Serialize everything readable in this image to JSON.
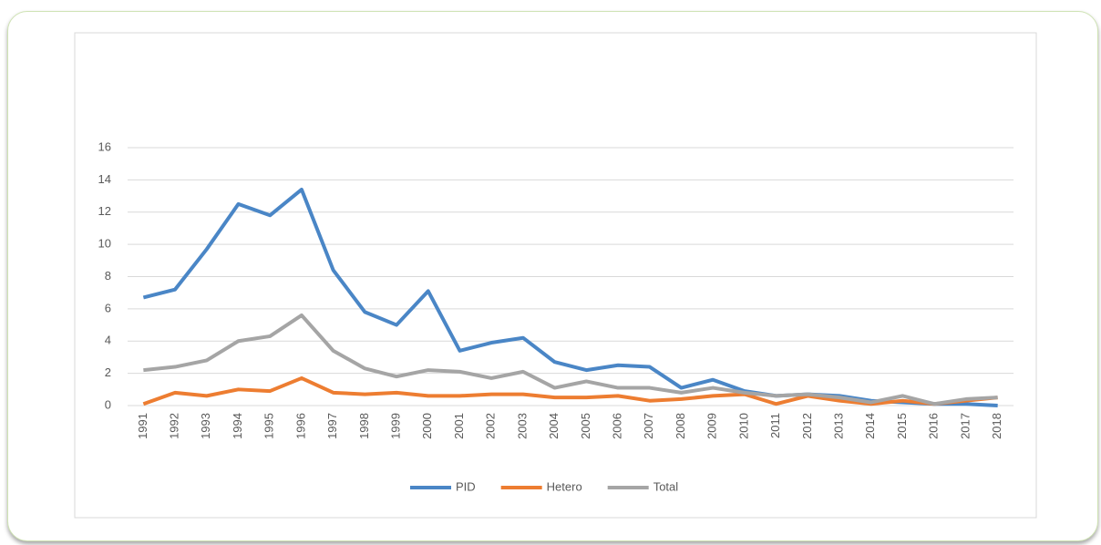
{
  "chart_data": {
    "type": "line",
    "categories": [
      "1991",
      "1992",
      "1993",
      "1994",
      "1995",
      "1996",
      "1997",
      "1998",
      "1999",
      "2000",
      "2001",
      "2002",
      "2003",
      "2004",
      "2005",
      "2006",
      "2007",
      "2008",
      "2009",
      "2010",
      "2011",
      "2012",
      "2013",
      "2014",
      "2015",
      "2016",
      "2017",
      "2018"
    ],
    "series": [
      {
        "name": "PID",
        "color": "#4a86c6",
        "values": [
          6.7,
          7.2,
          9.7,
          12.5,
          11.8,
          13.4,
          8.4,
          5.8,
          5.0,
          7.1,
          3.4,
          3.9,
          4.2,
          2.7,
          2.2,
          2.5,
          2.4,
          1.1,
          1.6,
          0.9,
          0.6,
          0.7,
          0.6,
          0.3,
          0.2,
          0.1,
          0.1,
          0.0
        ]
      },
      {
        "name": "Hetero",
        "color": "#ed7d31",
        "values": [
          0.1,
          0.8,
          0.6,
          1.0,
          0.9,
          1.7,
          0.8,
          0.7,
          0.8,
          0.6,
          0.6,
          0.7,
          0.7,
          0.5,
          0.5,
          0.6,
          0.3,
          0.4,
          0.6,
          0.7,
          0.1,
          0.6,
          0.3,
          0.1,
          0.3,
          0.1,
          0.3,
          0.5
        ]
      },
      {
        "name": "Total",
        "color": "#a5a5a5",
        "values": [
          2.2,
          2.4,
          2.8,
          4.0,
          4.3,
          5.6,
          3.4,
          2.3,
          1.8,
          2.2,
          2.1,
          1.7,
          2.1,
          1.1,
          1.5,
          1.1,
          1.1,
          0.8,
          1.1,
          0.8,
          0.6,
          0.7,
          0.5,
          0.2,
          0.6,
          0.1,
          0.4,
          0.5
        ]
      }
    ],
    "ylim": [
      0,
      16
    ],
    "yticks": [
      0,
      2,
      4,
      6,
      8,
      10,
      12,
      14,
      16
    ],
    "grid": true,
    "legend": "bottom"
  }
}
